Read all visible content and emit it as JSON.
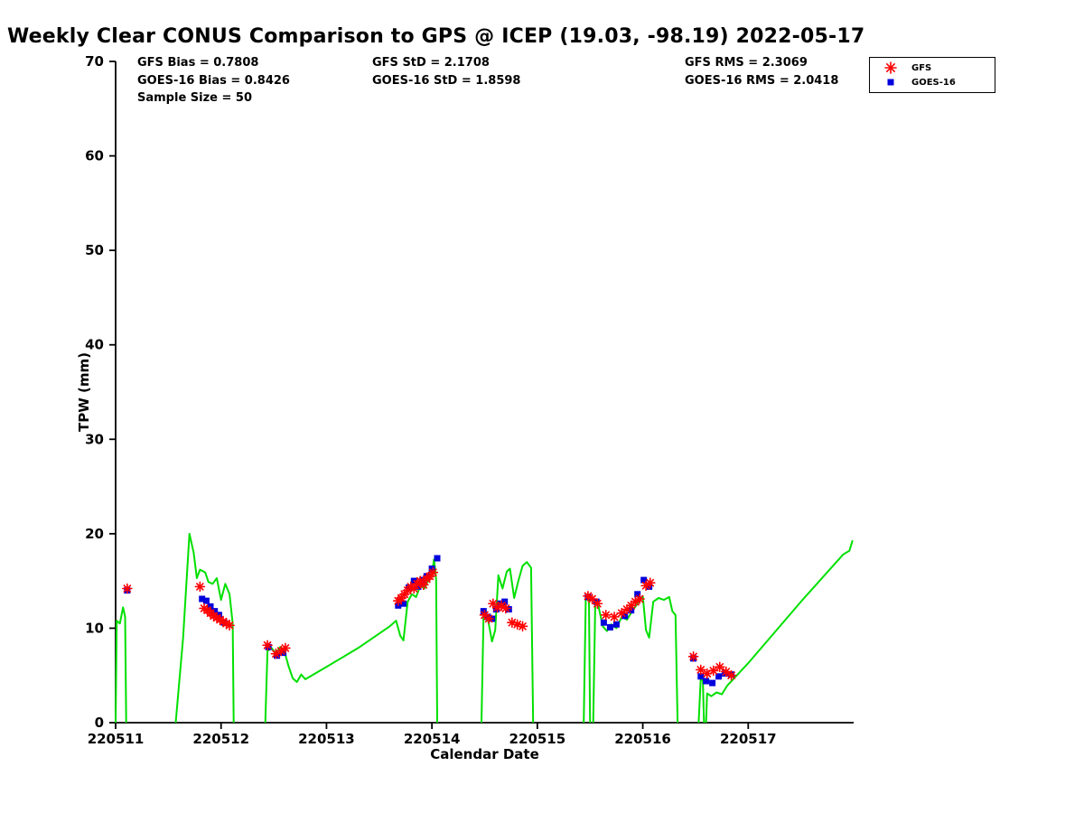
{
  "chart_data": {
    "type": "line+scatter",
    "title": "Weekly Clear CONUS Comparison to GPS @ ICEP (19.03, -98.19) 2022-05-17",
    "xlabel": "Calendar Date",
    "ylabel": "TPW (mm)",
    "xlim": [
      220511,
      220518
    ],
    "ylim": [
      0,
      70
    ],
    "xticks": [
      220511,
      220512,
      220513,
      220514,
      220515,
      220516,
      220517
    ],
    "yticks": [
      0,
      10,
      20,
      30,
      40,
      50,
      60,
      70
    ],
    "grid": false,
    "legend_position": "top-right",
    "stats": {
      "gfs_bias": 0.7808,
      "goes16_bias": 0.8426,
      "sample_size": 50,
      "gfs_std": 2.1708,
      "goes16_std": 1.8598,
      "gfs_rms": 2.3069,
      "goes16_rms": 2.0418
    },
    "stats_annotations": {
      "col1": [
        "GFS Bias = 0.7808",
        "GOES-16 Bias = 0.8426",
        "Sample Size = 50"
      ],
      "col2": [
        "GFS StD = 2.1708",
        "GOES-16 StD = 1.8598"
      ],
      "col3": [
        "GFS RMS = 2.3069",
        "GOES-16 RMS = 2.0418"
      ]
    },
    "series": [
      {
        "name": "GPS",
        "type": "line",
        "color": "#00e000",
        "segments": [
          [
            [
              220511.0,
              0
            ],
            [
              220511.01,
              10.8
            ],
            [
              220511.04,
              10.5
            ],
            [
              220511.07,
              12.2
            ],
            [
              220511.09,
              11.2
            ],
            [
              220511.1,
              0
            ]
          ],
          [
            [
              220511.57,
              0
            ],
            [
              220511.64,
              9.0
            ],
            [
              220511.7,
              20.0
            ],
            [
              220511.74,
              18.0
            ],
            [
              220511.77,
              15.3
            ],
            [
              220511.8,
              16.2
            ],
            [
              220511.85,
              15.9
            ],
            [
              220511.88,
              14.9
            ],
            [
              220511.92,
              14.7
            ],
            [
              220511.96,
              15.3
            ],
            [
              220512.0,
              13.0
            ],
            [
              220512.04,
              14.7
            ],
            [
              220512.08,
              13.6
            ],
            [
              220512.11,
              10.5
            ],
            [
              220512.12,
              0
            ]
          ],
          [
            [
              220512.42,
              0
            ],
            [
              220512.44,
              7.6
            ],
            [
              220512.48,
              7.9
            ],
            [
              220512.52,
              7.3
            ],
            [
              220512.56,
              8.0
            ],
            [
              220512.6,
              7.6
            ],
            [
              220512.64,
              6.0
            ],
            [
              220512.68,
              4.7
            ],
            [
              220512.72,
              4.3
            ],
            [
              220512.76,
              5.1
            ],
            [
              220512.8,
              4.6
            ],
            [
              220513.0,
              5.9
            ],
            [
              220513.3,
              7.9
            ],
            [
              220513.6,
              10.2
            ],
            [
              220513.66,
              10.8
            ],
            [
              220513.7,
              9.2
            ],
            [
              220513.73,
              8.7
            ],
            [
              220513.77,
              12.8
            ],
            [
              220513.81,
              13.6
            ],
            [
              220513.85,
              13.3
            ],
            [
              220513.89,
              14.5
            ],
            [
              220513.93,
              14.2
            ],
            [
              220513.97,
              15.2
            ],
            [
              220514.0,
              15.8
            ],
            [
              220514.02,
              17.3
            ],
            [
              220514.04,
              15.2
            ],
            [
              220514.05,
              0
            ]
          ],
          [
            [
              220514.47,
              0
            ],
            [
              220514.49,
              11.4
            ],
            [
              220514.53,
              11.0
            ],
            [
              220514.57,
              8.6
            ],
            [
              220514.6,
              9.8
            ],
            [
              220514.63,
              15.6
            ],
            [
              220514.67,
              14.2
            ],
            [
              220514.71,
              16.0
            ],
            [
              220514.74,
              16.3
            ],
            [
              220514.78,
              13.2
            ],
            [
              220514.82,
              15.0
            ],
            [
              220514.86,
              16.6
            ],
            [
              220514.9,
              17.0
            ],
            [
              220514.94,
              16.4
            ],
            [
              220514.96,
              0
            ]
          ],
          [
            [
              220515.44,
              0
            ],
            [
              220515.46,
              13.4
            ],
            [
              220515.49,
              13.0
            ],
            [
              220515.5,
              0
            ]
          ],
          [
            [
              220515.53,
              0
            ],
            [
              220515.55,
              12.8
            ],
            [
              220515.58,
              12.3
            ],
            [
              220515.62,
              10.2
            ],
            [
              220515.66,
              9.7
            ],
            [
              220515.7,
              10.4
            ],
            [
              220515.75,
              10.0
            ],
            [
              220515.8,
              11.2
            ],
            [
              220515.85,
              10.9
            ],
            [
              220515.9,
              11.8
            ],
            [
              220515.95,
              12.6
            ],
            [
              220516.0,
              13.4
            ],
            [
              220516.03,
              9.8
            ],
            [
              220516.06,
              9.0
            ],
            [
              220516.1,
              12.8
            ],
            [
              220516.15,
              13.2
            ],
            [
              220516.2,
              13.0
            ],
            [
              220516.25,
              13.3
            ],
            [
              220516.28,
              11.8
            ],
            [
              220516.31,
              11.4
            ],
            [
              220516.33,
              0
            ]
          ],
          [
            [
              220516.53,
              0
            ],
            [
              220516.55,
              4.8
            ],
            [
              220516.57,
              4.4
            ],
            [
              220516.58,
              0
            ]
          ],
          [
            [
              220516.6,
              0
            ],
            [
              220516.61,
              3.1
            ],
            [
              220516.65,
              2.8
            ],
            [
              220516.7,
              3.2
            ],
            [
              220516.75,
              3.0
            ],
            [
              220516.8,
              3.9
            ],
            [
              220517.0,
              6.3
            ],
            [
              220517.5,
              12.8
            ],
            [
              220517.9,
              17.8
            ],
            [
              220517.96,
              18.2
            ],
            [
              220517.99,
              19.3
            ]
          ]
        ]
      },
      {
        "name": "GFS",
        "type": "scatter",
        "marker": "asterisk",
        "color": "#ff0000",
        "points": [
          [
            220511.11,
            14.2
          ],
          [
            220511.8,
            14.4
          ],
          [
            220511.84,
            12.1
          ],
          [
            220511.87,
            11.9
          ],
          [
            220511.9,
            11.6
          ],
          [
            220511.93,
            11.3
          ],
          [
            220511.96,
            11.1
          ],
          [
            220511.99,
            10.9
          ],
          [
            220512.02,
            10.7
          ],
          [
            220512.05,
            10.5
          ],
          [
            220512.08,
            10.3
          ],
          [
            220512.44,
            8.2
          ],
          [
            220512.52,
            7.3
          ],
          [
            220512.57,
            7.6
          ],
          [
            220512.61,
            7.9
          ],
          [
            220513.68,
            12.9
          ],
          [
            220513.71,
            13.2
          ],
          [
            220513.74,
            13.6
          ],
          [
            220513.77,
            14.0
          ],
          [
            220513.8,
            14.4
          ],
          [
            220513.83,
            14.2
          ],
          [
            220513.86,
            14.7
          ],
          [
            220513.89,
            15.0
          ],
          [
            220513.92,
            14.6
          ],
          [
            220513.95,
            15.2
          ],
          [
            220513.98,
            15.5
          ],
          [
            220514.01,
            15.9
          ],
          [
            220514.5,
            11.4
          ],
          [
            220514.54,
            11.0
          ],
          [
            220514.58,
            12.6
          ],
          [
            220514.62,
            12.2
          ],
          [
            220514.66,
            12.4
          ],
          [
            220514.7,
            12.1
          ],
          [
            220514.76,
            10.6
          ],
          [
            220514.81,
            10.4
          ],
          [
            220514.86,
            10.2
          ],
          [
            220515.48,
            13.4
          ],
          [
            220515.52,
            13.1
          ],
          [
            220515.57,
            12.6
          ],
          [
            220515.65,
            11.4
          ],
          [
            220515.73,
            11.2
          ],
          [
            220515.8,
            11.6
          ],
          [
            220515.85,
            12.0
          ],
          [
            220515.89,
            12.4
          ],
          [
            220515.93,
            12.8
          ],
          [
            220515.97,
            13.1
          ],
          [
            220516.03,
            14.5
          ],
          [
            220516.07,
            14.8
          ],
          [
            220516.48,
            7.0
          ],
          [
            220516.55,
            5.6
          ],
          [
            220516.61,
            5.2
          ],
          [
            220516.67,
            5.5
          ],
          [
            220516.73,
            5.9
          ],
          [
            220516.79,
            5.4
          ],
          [
            220516.84,
            5.0
          ]
        ]
      },
      {
        "name": "GOES-16",
        "type": "scatter",
        "marker": "square",
        "color": "#0000dd",
        "points": [
          [
            220511.11,
            14.0
          ],
          [
            220511.82,
            13.1
          ],
          [
            220511.86,
            12.9
          ],
          [
            220511.9,
            12.3
          ],
          [
            220511.94,
            11.8
          ],
          [
            220511.98,
            11.4
          ],
          [
            220512.03,
            10.6
          ],
          [
            220512.45,
            8.0
          ],
          [
            220512.53,
            7.1
          ],
          [
            220512.59,
            7.4
          ],
          [
            220513.68,
            12.4
          ],
          [
            220513.73,
            12.6
          ],
          [
            220513.78,
            14.3
          ],
          [
            220513.83,
            15.0
          ],
          [
            220513.87,
            14.4
          ],
          [
            220513.91,
            15.1
          ],
          [
            220513.95,
            15.5
          ],
          [
            220514.0,
            16.3
          ],
          [
            220514.05,
            17.4
          ],
          [
            220514.49,
            11.8
          ],
          [
            220514.53,
            11.2
          ],
          [
            220514.57,
            11.0
          ],
          [
            220514.61,
            12.0
          ],
          [
            220514.65,
            12.6
          ],
          [
            220514.69,
            12.8
          ],
          [
            220514.73,
            12.0
          ],
          [
            220515.48,
            13.3
          ],
          [
            220515.56,
            12.8
          ],
          [
            220515.63,
            10.6
          ],
          [
            220515.69,
            10.1
          ],
          [
            220515.75,
            10.4
          ],
          [
            220515.83,
            11.3
          ],
          [
            220515.89,
            11.9
          ],
          [
            220515.95,
            13.6
          ],
          [
            220516.01,
            15.1
          ],
          [
            220516.06,
            14.4
          ],
          [
            220516.48,
            6.8
          ],
          [
            220516.55,
            4.9
          ],
          [
            220516.6,
            4.4
          ],
          [
            220516.66,
            4.2
          ],
          [
            220516.72,
            4.9
          ],
          [
            220516.78,
            5.2
          ],
          [
            220516.84,
            5.1
          ]
        ]
      }
    ]
  }
}
